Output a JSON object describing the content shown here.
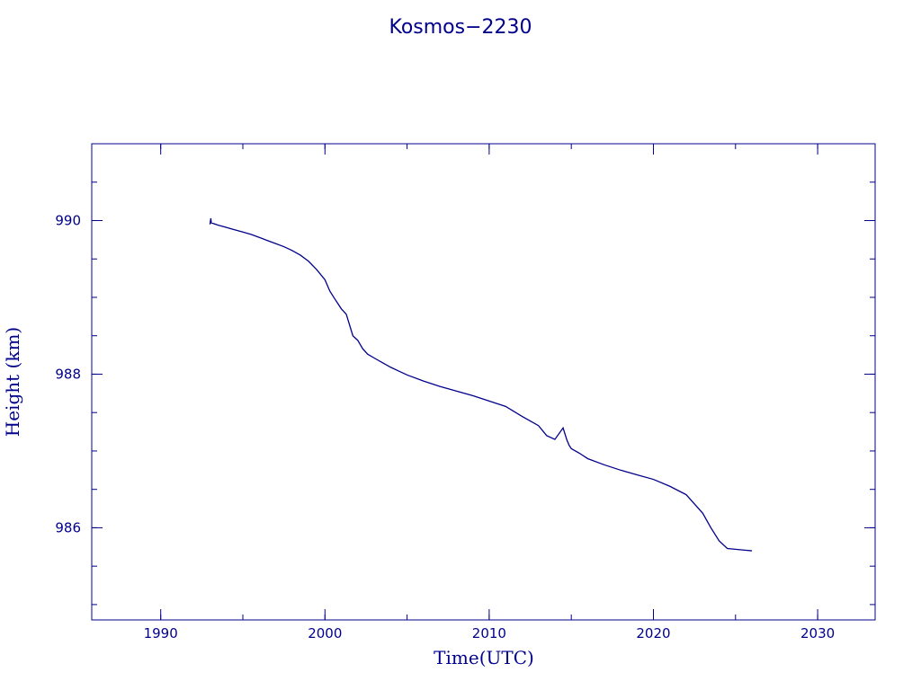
{
  "chart_data": {
    "type": "line",
    "title": "Kosmos−2230",
    "xlabel": "Time(UTC)",
    "ylabel": "Height (km)",
    "xlim": [
      1985.8,
      2033.5
    ],
    "ylim": [
      984.8,
      991.0
    ],
    "x_ticks": [
      1990,
      2000,
      2010,
      2020,
      2030
    ],
    "y_ticks": [
      986,
      988,
      990
    ],
    "x_minor_ticks": [
      1990,
      1995,
      2000,
      2005,
      2010,
      2015,
      2020,
      2025,
      2030
    ],
    "y_minor_ticks": [
      985,
      985.5,
      986,
      986.5,
      987,
      987.5,
      988,
      988.5,
      989,
      989.5,
      990,
      990.5
    ],
    "grid": false,
    "color": "#00008b",
    "series": [
      {
        "x": [
          1993.0,
          1993.05,
          1993.08,
          1993.5,
          1994,
          1994.5,
          1995,
          1995.5,
          1996,
          1996.5,
          1997,
          1997.5,
          1998,
          1998.5,
          1999,
          1999.5,
          2000,
          2000.3,
          2000.6,
          2001,
          2001.3,
          2001.7,
          2002,
          2002.3,
          2002.6,
          2003,
          2003.5,
          2004,
          2004.5,
          2005,
          2006,
          2007,
          2008,
          2009,
          2010,
          2011,
          2012,
          2012.5,
          2013,
          2013.5,
          2014,
          2014.5,
          2014.75,
          2014.8,
          2014.85,
          2015,
          2015.5,
          2016,
          2017,
          2018,
          2019,
          2020,
          2021,
          2022,
          2022.5,
          2023,
          2023.5,
          2024,
          2024.5,
          2025,
          2025.5,
          2026.0
        ],
        "y": [
          989.95,
          990.03,
          989.97,
          989.94,
          989.91,
          989.88,
          989.85,
          989.82,
          989.78,
          989.74,
          989.7,
          989.66,
          989.61,
          989.55,
          989.47,
          989.36,
          989.23,
          989.08,
          988.98,
          988.85,
          988.78,
          988.5,
          988.44,
          988.33,
          988.26,
          988.21,
          988.15,
          988.09,
          988.04,
          987.99,
          987.91,
          987.84,
          987.78,
          987.72,
          987.65,
          987.58,
          987.45,
          987.39,
          987.33,
          987.2,
          987.15,
          987.3,
          987.13,
          987.11,
          987.08,
          987.03,
          986.97,
          986.9,
          986.82,
          986.75,
          986.69,
          986.63,
          986.54,
          986.43,
          986.31,
          986.19,
          986.0,
          985.83,
          985.73,
          985.72,
          985.71,
          985.7
        ]
      }
    ]
  }
}
